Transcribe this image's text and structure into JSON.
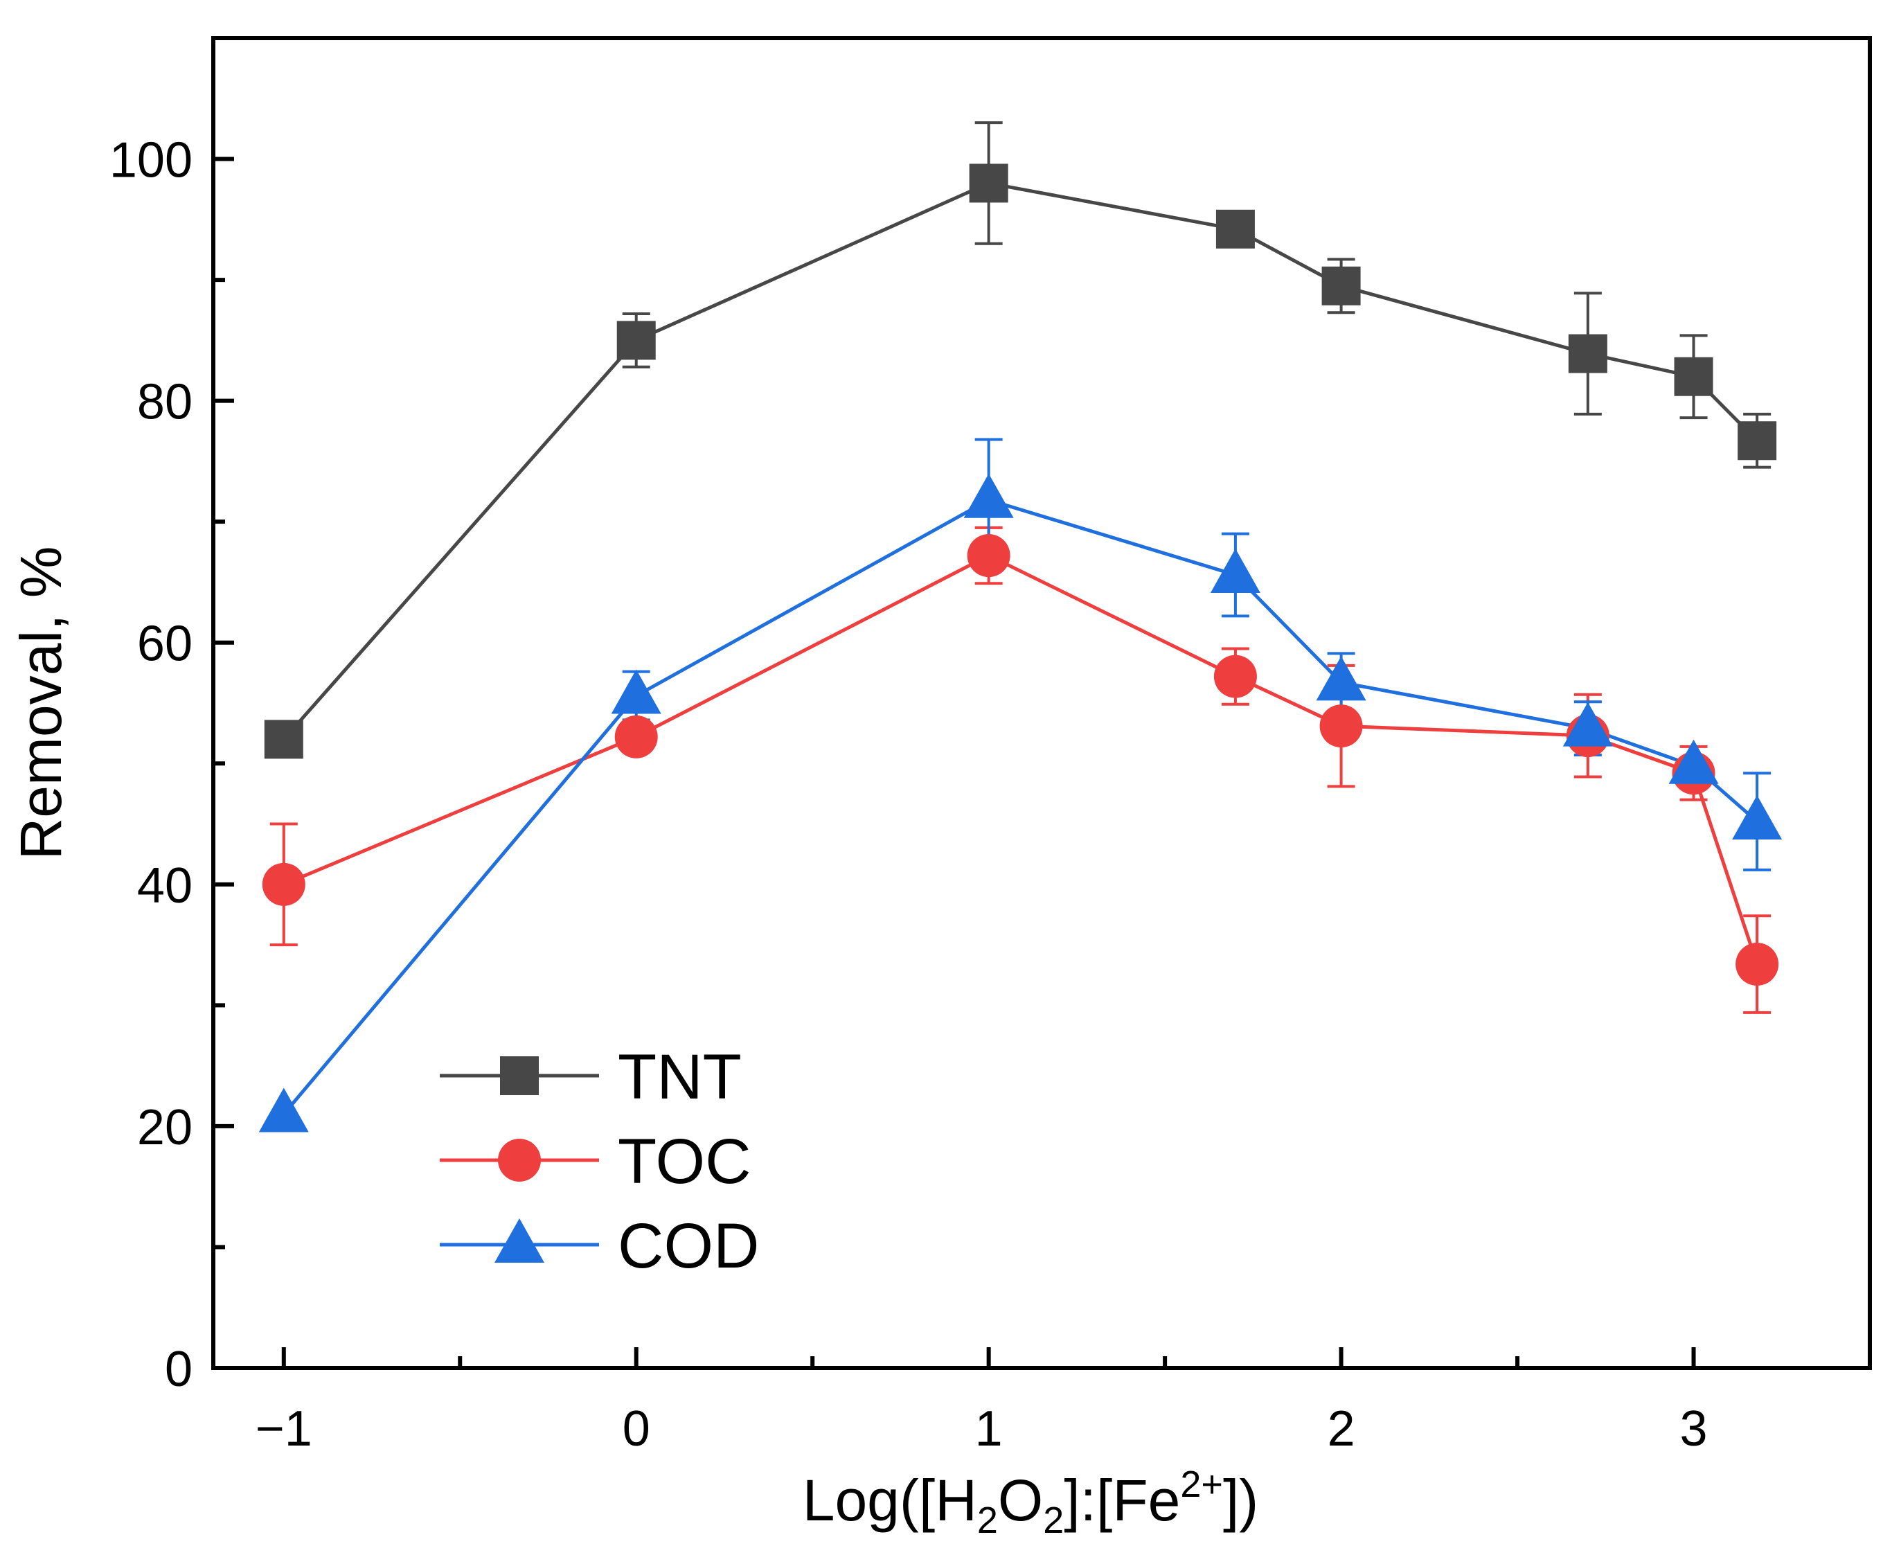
{
  "chart_data": {
    "type": "line",
    "title": "",
    "xlabel": "Log([H2O2]:[Fe2+])",
    "xlabel_parts": {
      "a": "Log([H",
      "sub1": "2",
      "b": "O",
      "sub2": "2",
      "c": "]:[Fe",
      "sup": "2+",
      "d": "])"
    },
    "ylabel": "Removal, %",
    "xlim": [
      -1.2,
      3.5
    ],
    "ylim": [
      0,
      110
    ],
    "xticks": [
      -1,
      0,
      1,
      2,
      3
    ],
    "xtick_labels": [
      "−1",
      "0",
      "1",
      "2",
      "3"
    ],
    "yticks": [
      0,
      20,
      40,
      60,
      80,
      100
    ],
    "ytick_labels": [
      "0",
      "20",
      "40",
      "60",
      "80",
      "100"
    ],
    "x_minor_step": 0.5,
    "y_minor_step": 10,
    "legend_position": "bottom-left",
    "x": [
      -1,
      0,
      1,
      1.7,
      2,
      2.7,
      3,
      3.18
    ],
    "series": [
      {
        "name": "TNT",
        "color": "#474747",
        "marker": "square",
        "values": [
          52,
          85,
          98,
          94.2,
          89.5,
          83.9,
          82,
          76.7
        ],
        "errors": [
          null,
          2.2,
          5,
          null,
          2.2,
          5,
          3.4,
          2.2
        ]
      },
      {
        "name": "TOC",
        "color": "#ef3e3e",
        "marker": "circle",
        "values": [
          40,
          52.2,
          67.2,
          57.2,
          53.1,
          52.3,
          49.2,
          33.4
        ],
        "errors": [
          5,
          null,
          2.3,
          2.3,
          5,
          3.4,
          2.2,
          4
        ]
      },
      {
        "name": "COD",
        "color": "#1f6fdf",
        "marker": "triangle",
        "values": [
          21,
          55.6,
          71.8,
          65.6,
          56.7,
          52.9,
          49.8,
          45.2
        ],
        "errors": [
          null,
          2,
          5,
          3.4,
          2.4,
          2.2,
          null,
          4
        ]
      }
    ]
  }
}
